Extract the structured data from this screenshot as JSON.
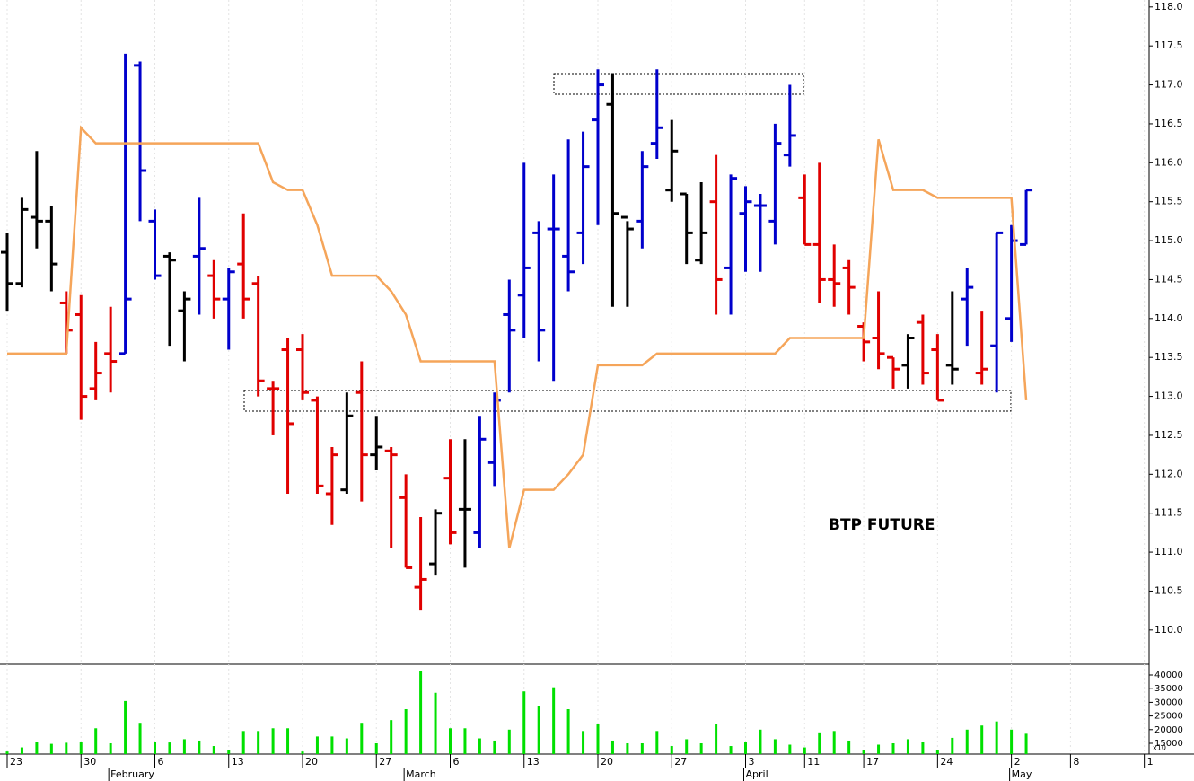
{
  "chart_data": [
    {
      "type": "ohlc",
      "annotation": "BTP FUTURE",
      "ylim": [
        109.56,
        118.09
      ],
      "yticks": [
        {
          "value": 110,
          "label": "110.0"
        },
        110.5,
        {
          "value": 111,
          "label": "111.0"
        },
        111.5,
        {
          "value": 112,
          "label": "112.0"
        },
        112.5,
        {
          "value": 113,
          "label": "113.0"
        },
        113.5,
        {
          "value": 114,
          "label": "114.0"
        },
        114.5,
        {
          "value": 115,
          "label": "115.0"
        },
        115.5,
        {
          "value": 116,
          "label": "116.0"
        },
        116.5,
        {
          "value": 117,
          "label": "117.0"
        },
        117.5,
        {
          "value": 118,
          "label": "118.0"
        }
      ],
      "open": [
        114.85,
        114.45,
        115.3,
        115.25,
        114.2,
        114.05,
        113.1,
        113.55,
        113.55,
        117.25,
        115.25,
        114.8,
        114.1,
        114.8,
        114.55,
        114.25,
        114.7,
        114.45,
        113.1,
        113.6,
        113.6,
        112.95,
        111.75,
        111.8,
        113.05,
        112.25,
        112.3,
        111.7,
        110.55,
        110.85,
        111.95,
        111.55,
        111.25,
        112.15,
        114.05,
        114.3,
        115.1,
        115.15,
        114.8,
        115.1,
        116.55,
        116.75,
        115.3,
        115.25,
        116.25,
        115.65,
        115.6,
        114.75,
        115.5,
        114.65,
        115.35,
        115.45,
        115.25,
        116.1,
        115.55,
        114.95,
        114.5,
        114.65,
        113.9,
        113.75,
        113.5,
        113.4,
        113.95,
        113.6,
        113.4,
        114.25,
        113.3,
        113.65,
        114.0,
        114.95
      ],
      "high": [
        115.1,
        115.55,
        116.15,
        115.45,
        114.35,
        114.3,
        113.7,
        114.15,
        117.4,
        117.3,
        115.4,
        114.85,
        114.35,
        115.55,
        114.75,
        114.65,
        115.35,
        114.55,
        113.2,
        113.75,
        113.8,
        113.0,
        112.35,
        113.05,
        113.45,
        112.75,
        112.35,
        112.0,
        111.45,
        111.55,
        112.45,
        112.45,
        112.75,
        113.05,
        114.5,
        116.0,
        115.25,
        115.85,
        116.3,
        116.4,
        117.2,
        117.15,
        115.25,
        116.15,
        117.2,
        116.55,
        115.6,
        115.75,
        116.1,
        115.85,
        115.7,
        115.6,
        116.5,
        117.0,
        115.85,
        116.0,
        114.95,
        114.75,
        113.95,
        114.35,
        113.5,
        113.8,
        114.05,
        113.8,
        114.35,
        114.65,
        114.1,
        115.1,
        115.2,
        115.65
      ],
      "low": [
        114.1,
        114.4,
        114.9,
        114.35,
        113.55,
        112.7,
        112.95,
        113.05,
        113.55,
        115.25,
        114.5,
        113.65,
        113.45,
        114.05,
        114.0,
        113.6,
        114.0,
        113.0,
        112.5,
        111.75,
        112.95,
        111.75,
        111.35,
        111.75,
        111.65,
        112.05,
        111.05,
        110.8,
        110.25,
        110.7,
        111.1,
        110.8,
        111.05,
        111.85,
        113.05,
        113.75,
        113.45,
        113.2,
        114.35,
        114.7,
        115.2,
        114.15,
        114.15,
        114.9,
        116.05,
        115.5,
        114.7,
        114.7,
        114.05,
        114.05,
        114.6,
        114.6,
        114.95,
        115.95,
        114.95,
        114.2,
        114.15,
        114.05,
        113.45,
        113.35,
        113.1,
        113.1,
        113.15,
        112.95,
        113.15,
        113.65,
        113.15,
        113.05,
        113.7,
        114.95
      ],
      "close": [
        114.45,
        115.4,
        115.25,
        114.7,
        113.85,
        113.0,
        113.3,
        113.45,
        114.25,
        115.9,
        114.55,
        114.75,
        114.25,
        114.9,
        114.25,
        114.6,
        114.25,
        113.2,
        113.1,
        112.65,
        113.05,
        111.85,
        112.25,
        112.75,
        112.25,
        112.35,
        112.25,
        110.8,
        110.65,
        111.5,
        111.25,
        111.55,
        112.45,
        112.95,
        113.85,
        114.65,
        113.85,
        115.15,
        114.6,
        115.95,
        117.0,
        115.35,
        115.15,
        115.95,
        116.45,
        116.15,
        115.1,
        115.1,
        114.5,
        115.8,
        115.5,
        115.45,
        116.25,
        116.35,
        114.95,
        114.5,
        114.45,
        114.4,
        113.7,
        113.55,
        113.35,
        113.75,
        113.3,
        112.95,
        113.35,
        114.4,
        113.35,
        115.1,
        115.0,
        115.65
      ],
      "colors": [
        "#000000",
        "#000000",
        "#000000",
        "#000000",
        "#e00000",
        "#e00000",
        "#e00000",
        "#e00000",
        "#0000cc",
        "#0000cc",
        "#0000cc",
        "#000000",
        "#000000",
        "#0000cc",
        "#e00000",
        "#0000cc",
        "#e00000",
        "#e00000",
        "#e00000",
        "#e00000",
        "#e00000",
        "#e00000",
        "#e00000",
        "#000000",
        "#e00000",
        "#000000",
        "#e00000",
        "#e00000",
        "#e00000",
        "#000000",
        "#e00000",
        "#000000",
        "#0000cc",
        "#0000cc",
        "#0000cc",
        "#0000cc",
        "#0000cc",
        "#0000cc",
        "#0000cc",
        "#0000cc",
        "#0000cc",
        "#000000",
        "#000000",
        "#0000cc",
        "#0000cc",
        "#000000",
        "#000000",
        "#000000",
        "#e00000",
        "#0000cc",
        "#0000cc",
        "#0000cc",
        "#0000cc",
        "#0000cc",
        "#e00000",
        "#e00000",
        "#e00000",
        "#e00000",
        "#e00000",
        "#e00000",
        "#e00000",
        "#000000",
        "#e00000",
        "#e00000",
        "#000000",
        "#0000cc",
        "#e00000",
        "#0000cc",
        "#0000cc",
        "#0000cc"
      ],
      "line": {
        "color": "#f5a55a",
        "values": [
          113.55,
          113.55,
          113.55,
          113.55,
          113.55,
          116.45,
          116.25,
          116.25,
          116.25,
          116.25,
          116.25,
          116.25,
          116.25,
          116.25,
          116.25,
          116.25,
          116.25,
          116.25,
          115.75,
          115.65,
          115.65,
          115.2,
          114.55,
          114.55,
          114.55,
          114.55,
          114.35,
          114.05,
          113.45,
          113.45,
          113.45,
          113.45,
          113.45,
          113.45,
          111.05,
          111.8,
          111.8,
          111.8,
          112.0,
          112.25,
          113.4,
          113.4,
          113.4,
          113.4,
          113.55,
          113.55,
          113.55,
          113.55,
          113.55,
          113.55,
          113.55,
          113.55,
          113.55,
          113.75,
          113.75,
          113.75,
          113.75,
          113.75,
          113.75,
          116.3,
          115.65,
          115.65,
          115.65,
          115.55,
          115.55,
          115.55,
          115.55,
          115.55,
          115.55,
          112.95
        ]
      }
    },
    {
      "type": "bar",
      "color": "#00e000",
      "axis_note": "x10",
      "ylim": [
        11050,
        43950
      ],
      "yticks": [
        15000,
        20000,
        25000,
        30000,
        35000,
        40000
      ],
      "values": [
        12000,
        13500,
        15500,
        14800,
        15200,
        15600,
        20500,
        15000,
        30500,
        22500,
        15500,
        15300,
        16500,
        16000,
        14000,
        12500,
        19500,
        19500,
        20500,
        20500,
        12000,
        17500,
        17500,
        16800,
        22500,
        15000,
        23500,
        27500,
        41500,
        33500,
        20500,
        20500,
        16800,
        16000,
        20000,
        34000,
        28500,
        35500,
        27500,
        19500,
        22000,
        16000,
        15000,
        15000,
        19500,
        14000,
        16500,
        15000,
        22000,
        14000,
        15500,
        20000,
        16500,
        14500,
        13500,
        19000,
        19500,
        16000,
        12500,
        14500,
        15000,
        16500,
        15500,
        12500,
        17000,
        20000,
        21500,
        23000,
        20000,
        18500
      ]
    }
  ],
  "x_axis": {
    "ticks": [
      {
        "value": 0,
        "label": "23"
      },
      {
        "value": 5,
        "label": "30"
      },
      {
        "value": 10,
        "label": "6"
      },
      {
        "value": 15,
        "label": "13"
      },
      {
        "value": 20,
        "label": "20"
      },
      {
        "value": 25,
        "label": "27"
      },
      {
        "value": 30,
        "label": "6"
      },
      {
        "value": 35,
        "label": "13"
      },
      {
        "value": 40,
        "label": "20"
      },
      {
        "value": 45,
        "label": "27"
      },
      {
        "value": 50,
        "label": "3"
      },
      {
        "value": 54,
        "label": "11"
      },
      {
        "value": 58,
        "label": "17"
      },
      {
        "value": 63,
        "label": "24"
      },
      {
        "value": 68,
        "label": "2"
      },
      {
        "value": 72,
        "label": "8"
      },
      {
        "value": 77,
        "label": "1"
      }
    ],
    "months": [
      {
        "value": 7,
        "label": "February"
      },
      {
        "value": 27,
        "label": "March"
      },
      {
        "value": 50,
        "label": "April"
      },
      {
        "value": 68,
        "label": "May"
      }
    ]
  }
}
